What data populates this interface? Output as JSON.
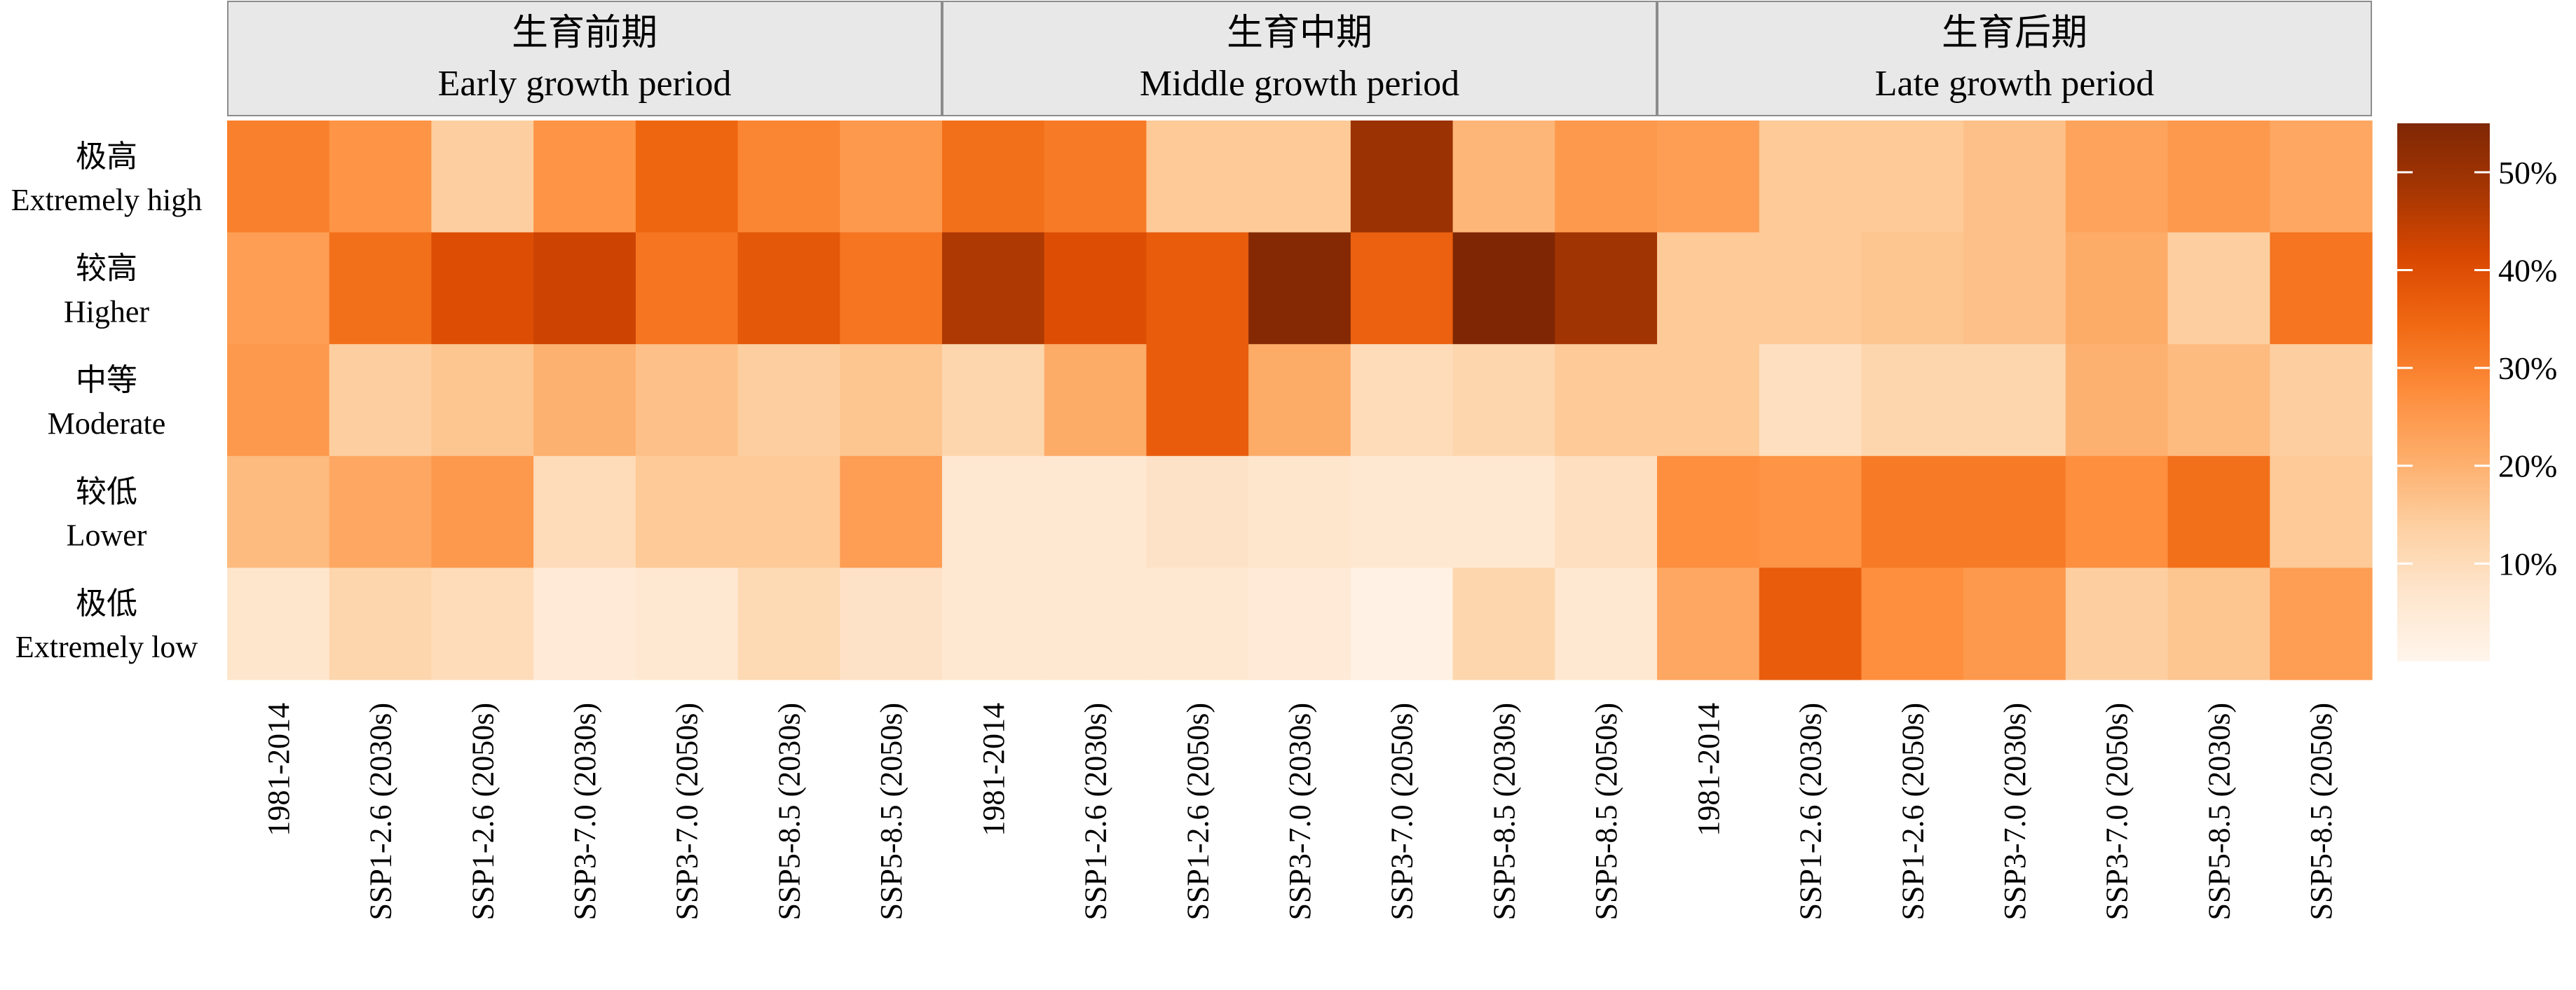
{
  "chart_data": {
    "type": "heatmap",
    "panels": [
      {
        "title_zh": "生育前期",
        "title_en": "Early growth period",
        "columns": [
          "1981-2014",
          "SSP1-2.6 (2030s)",
          "SSP1-2.6 (2050s)",
          "SSP3-7.0 (2030s)",
          "SSP3-7.0 (2050s)",
          "SSP5-8.5 (2030s)",
          "SSP5-8.5 (2050s)"
        ],
        "values": [
          [
            30,
            26,
            14,
            26,
            35,
            29,
            25
          ],
          [
            24,
            33,
            40,
            43,
            32,
            38,
            32
          ],
          [
            25,
            14,
            16,
            20,
            17,
            14,
            16
          ],
          [
            18,
            22,
            25,
            10,
            15,
            15,
            24
          ],
          [
            7,
            12,
            10,
            5,
            6,
            11,
            8
          ]
        ]
      },
      {
        "title_zh": "生育中期",
        "title_en": "Middle growth period",
        "columns": [
          "1981-2014",
          "SSP1-2.6 (2030s)",
          "SSP1-2.6 (2050s)",
          "SSP3-7.0 (2030s)",
          "SSP3-7.0 (2050s)",
          "SSP5-8.5 (2030s)",
          "SSP5-8.5 (2050s)"
        ],
        "values": [
          [
            33,
            31,
            15,
            15,
            50,
            19,
            25
          ],
          [
            47,
            40,
            37,
            54,
            36,
            56,
            49
          ],
          [
            12,
            21,
            37,
            21,
            10,
            12,
            15
          ],
          [
            6,
            6,
            8,
            7,
            6,
            6,
            9
          ],
          [
            6,
            6,
            6,
            5,
            2,
            12,
            6
          ]
        ]
      },
      {
        "title_zh": "生育后期",
        "title_en": "Late growth period",
        "columns": [
          "1981-2014",
          "SSP1-2.6 (2030s)",
          "SSP1-2.6 (2050s)",
          "SSP3-7.0 (2030s)",
          "SSP3-7.0 (2050s)",
          "SSP5-8.5 (2030s)",
          "SSP5-8.5 (2050s)"
        ],
        "values": [
          [
            24,
            15,
            15,
            17,
            23,
            25,
            22
          ],
          [
            15,
            15,
            16,
            17,
            21,
            14,
            32
          ],
          [
            15,
            9,
            12,
            12,
            20,
            18,
            14
          ],
          [
            27,
            26,
            31,
            31,
            27,
            33,
            15
          ],
          [
            22,
            37,
            27,
            25,
            14,
            16,
            24
          ]
        ]
      }
    ],
    "rows": [
      {
        "zh": "极高",
        "en": "Extremely high"
      },
      {
        "zh": "较高",
        "en": "Higher"
      },
      {
        "zh": "中等",
        "en": "Moderate"
      },
      {
        "zh": "较低",
        "en": "Lower"
      },
      {
        "zh": "极低",
        "en": "Extremely low"
      }
    ],
    "colorbar": {
      "min": 0,
      "max": 55,
      "ticks": [
        10,
        20,
        30,
        40,
        50
      ],
      "tick_labels": [
        "10%",
        "20%",
        "30%",
        "40%",
        "50%"
      ],
      "colors": [
        "#fff5eb",
        "#fee6ce",
        "#fdd0a2",
        "#fdae6b",
        "#fd8d3c",
        "#f16913",
        "#d94801",
        "#a63603",
        "#7f2704"
      ]
    },
    "unit": "%",
    "grid": false
  }
}
